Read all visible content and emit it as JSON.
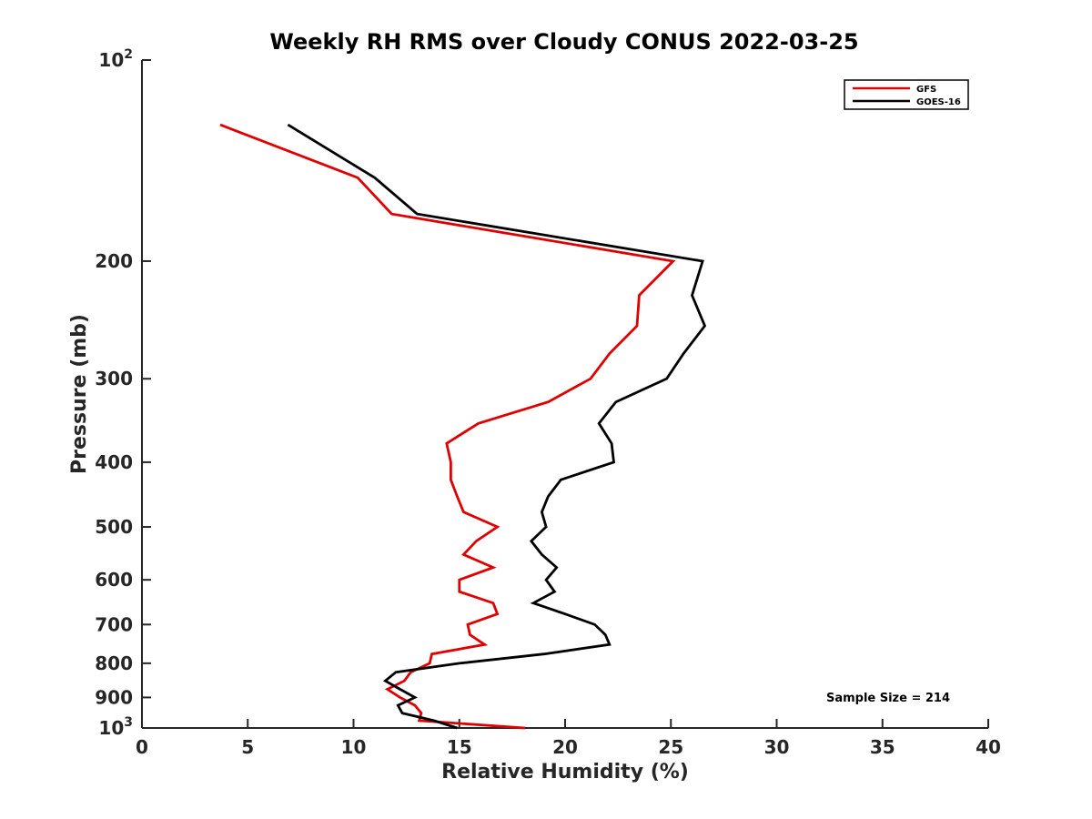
{
  "chart_data": {
    "type": "line",
    "title": "Weekly RH RMS over Cloudy CONUS 2022-03-25",
    "xlabel": "Relative Humidity (%)",
    "ylabel": "Pressure (mb)",
    "xlim": [
      0,
      40
    ],
    "ylim": [
      100,
      1000
    ],
    "y_scale": "log",
    "y_reversed": true,
    "grid": false,
    "legend_position": "top-right",
    "x_ticks": [
      0,
      5,
      10,
      15,
      20,
      25,
      30,
      35,
      40
    ],
    "x_tick_labels": [
      "0",
      "5",
      "10",
      "15",
      "20",
      "25",
      "30",
      "35",
      "40"
    ],
    "y_ticks": [
      100,
      200,
      300,
      400,
      500,
      600,
      700,
      800,
      900,
      1000
    ],
    "y_tick_labels": [
      {
        "base": "10",
        "exp": "2"
      },
      {
        "base": "200",
        "exp": ""
      },
      {
        "base": "300",
        "exp": ""
      },
      {
        "base": "400",
        "exp": ""
      },
      {
        "base": "500",
        "exp": ""
      },
      {
        "base": "600",
        "exp": ""
      },
      {
        "base": "700",
        "exp": ""
      },
      {
        "base": "800",
        "exp": ""
      },
      {
        "base": "900",
        "exp": ""
      },
      {
        "base": "10",
        "exp": "3"
      }
    ],
    "annotation": "Sample Size = 214",
    "series": [
      {
        "name": "GFS",
        "color": "#e00000",
        "points": [
          [
            3.7,
            125
          ],
          [
            10.2,
            150
          ],
          [
            11.8,
            170
          ],
          [
            25.1,
            200
          ],
          [
            23.5,
            225
          ],
          [
            23.4,
            250
          ],
          [
            22.1,
            275
          ],
          [
            21.2,
            300
          ],
          [
            19.2,
            325
          ],
          [
            15.9,
            350
          ],
          [
            14.4,
            375
          ],
          [
            14.6,
            400
          ],
          [
            14.6,
            425
          ],
          [
            14.9,
            450
          ],
          [
            15.2,
            475
          ],
          [
            16.8,
            500
          ],
          [
            15.8,
            525
          ],
          [
            15.2,
            550
          ],
          [
            16.6,
            575
          ],
          [
            15.0,
            600
          ],
          [
            15.0,
            625
          ],
          [
            16.6,
            650
          ],
          [
            16.8,
            675
          ],
          [
            15.4,
            700
          ],
          [
            15.5,
            725
          ],
          [
            16.2,
            750
          ],
          [
            13.7,
            775
          ],
          [
            13.6,
            800
          ],
          [
            12.7,
            825
          ],
          [
            12.4,
            850
          ],
          [
            11.6,
            875
          ],
          [
            12.2,
            900
          ],
          [
            12.9,
            925
          ],
          [
            13.2,
            950
          ],
          [
            13.1,
            975
          ],
          [
            18.1,
            1000
          ]
        ]
      },
      {
        "name": "GOES-16",
        "color": "#000000",
        "points": [
          [
            6.9,
            125
          ],
          [
            11.0,
            150
          ],
          [
            13.0,
            170
          ],
          [
            26.5,
            200
          ],
          [
            26.0,
            225
          ],
          [
            26.6,
            250
          ],
          [
            25.6,
            275
          ],
          [
            24.8,
            300
          ],
          [
            22.4,
            325
          ],
          [
            21.6,
            350
          ],
          [
            22.2,
            375
          ],
          [
            22.3,
            400
          ],
          [
            19.8,
            425
          ],
          [
            19.2,
            450
          ],
          [
            18.9,
            475
          ],
          [
            19.1,
            500
          ],
          [
            18.4,
            525
          ],
          [
            18.9,
            550
          ],
          [
            19.6,
            575
          ],
          [
            19.1,
            600
          ],
          [
            19.5,
            625
          ],
          [
            18.5,
            650
          ],
          [
            20.0,
            675
          ],
          [
            21.4,
            700
          ],
          [
            21.9,
            725
          ],
          [
            22.1,
            750
          ],
          [
            19.0,
            775
          ],
          [
            15.0,
            800
          ],
          [
            12.0,
            825
          ],
          [
            11.5,
            850
          ],
          [
            12.2,
            875
          ],
          [
            12.9,
            900
          ],
          [
            12.1,
            925
          ],
          [
            12.3,
            950
          ],
          [
            13.8,
            975
          ],
          [
            14.9,
            1000
          ]
        ]
      }
    ]
  }
}
